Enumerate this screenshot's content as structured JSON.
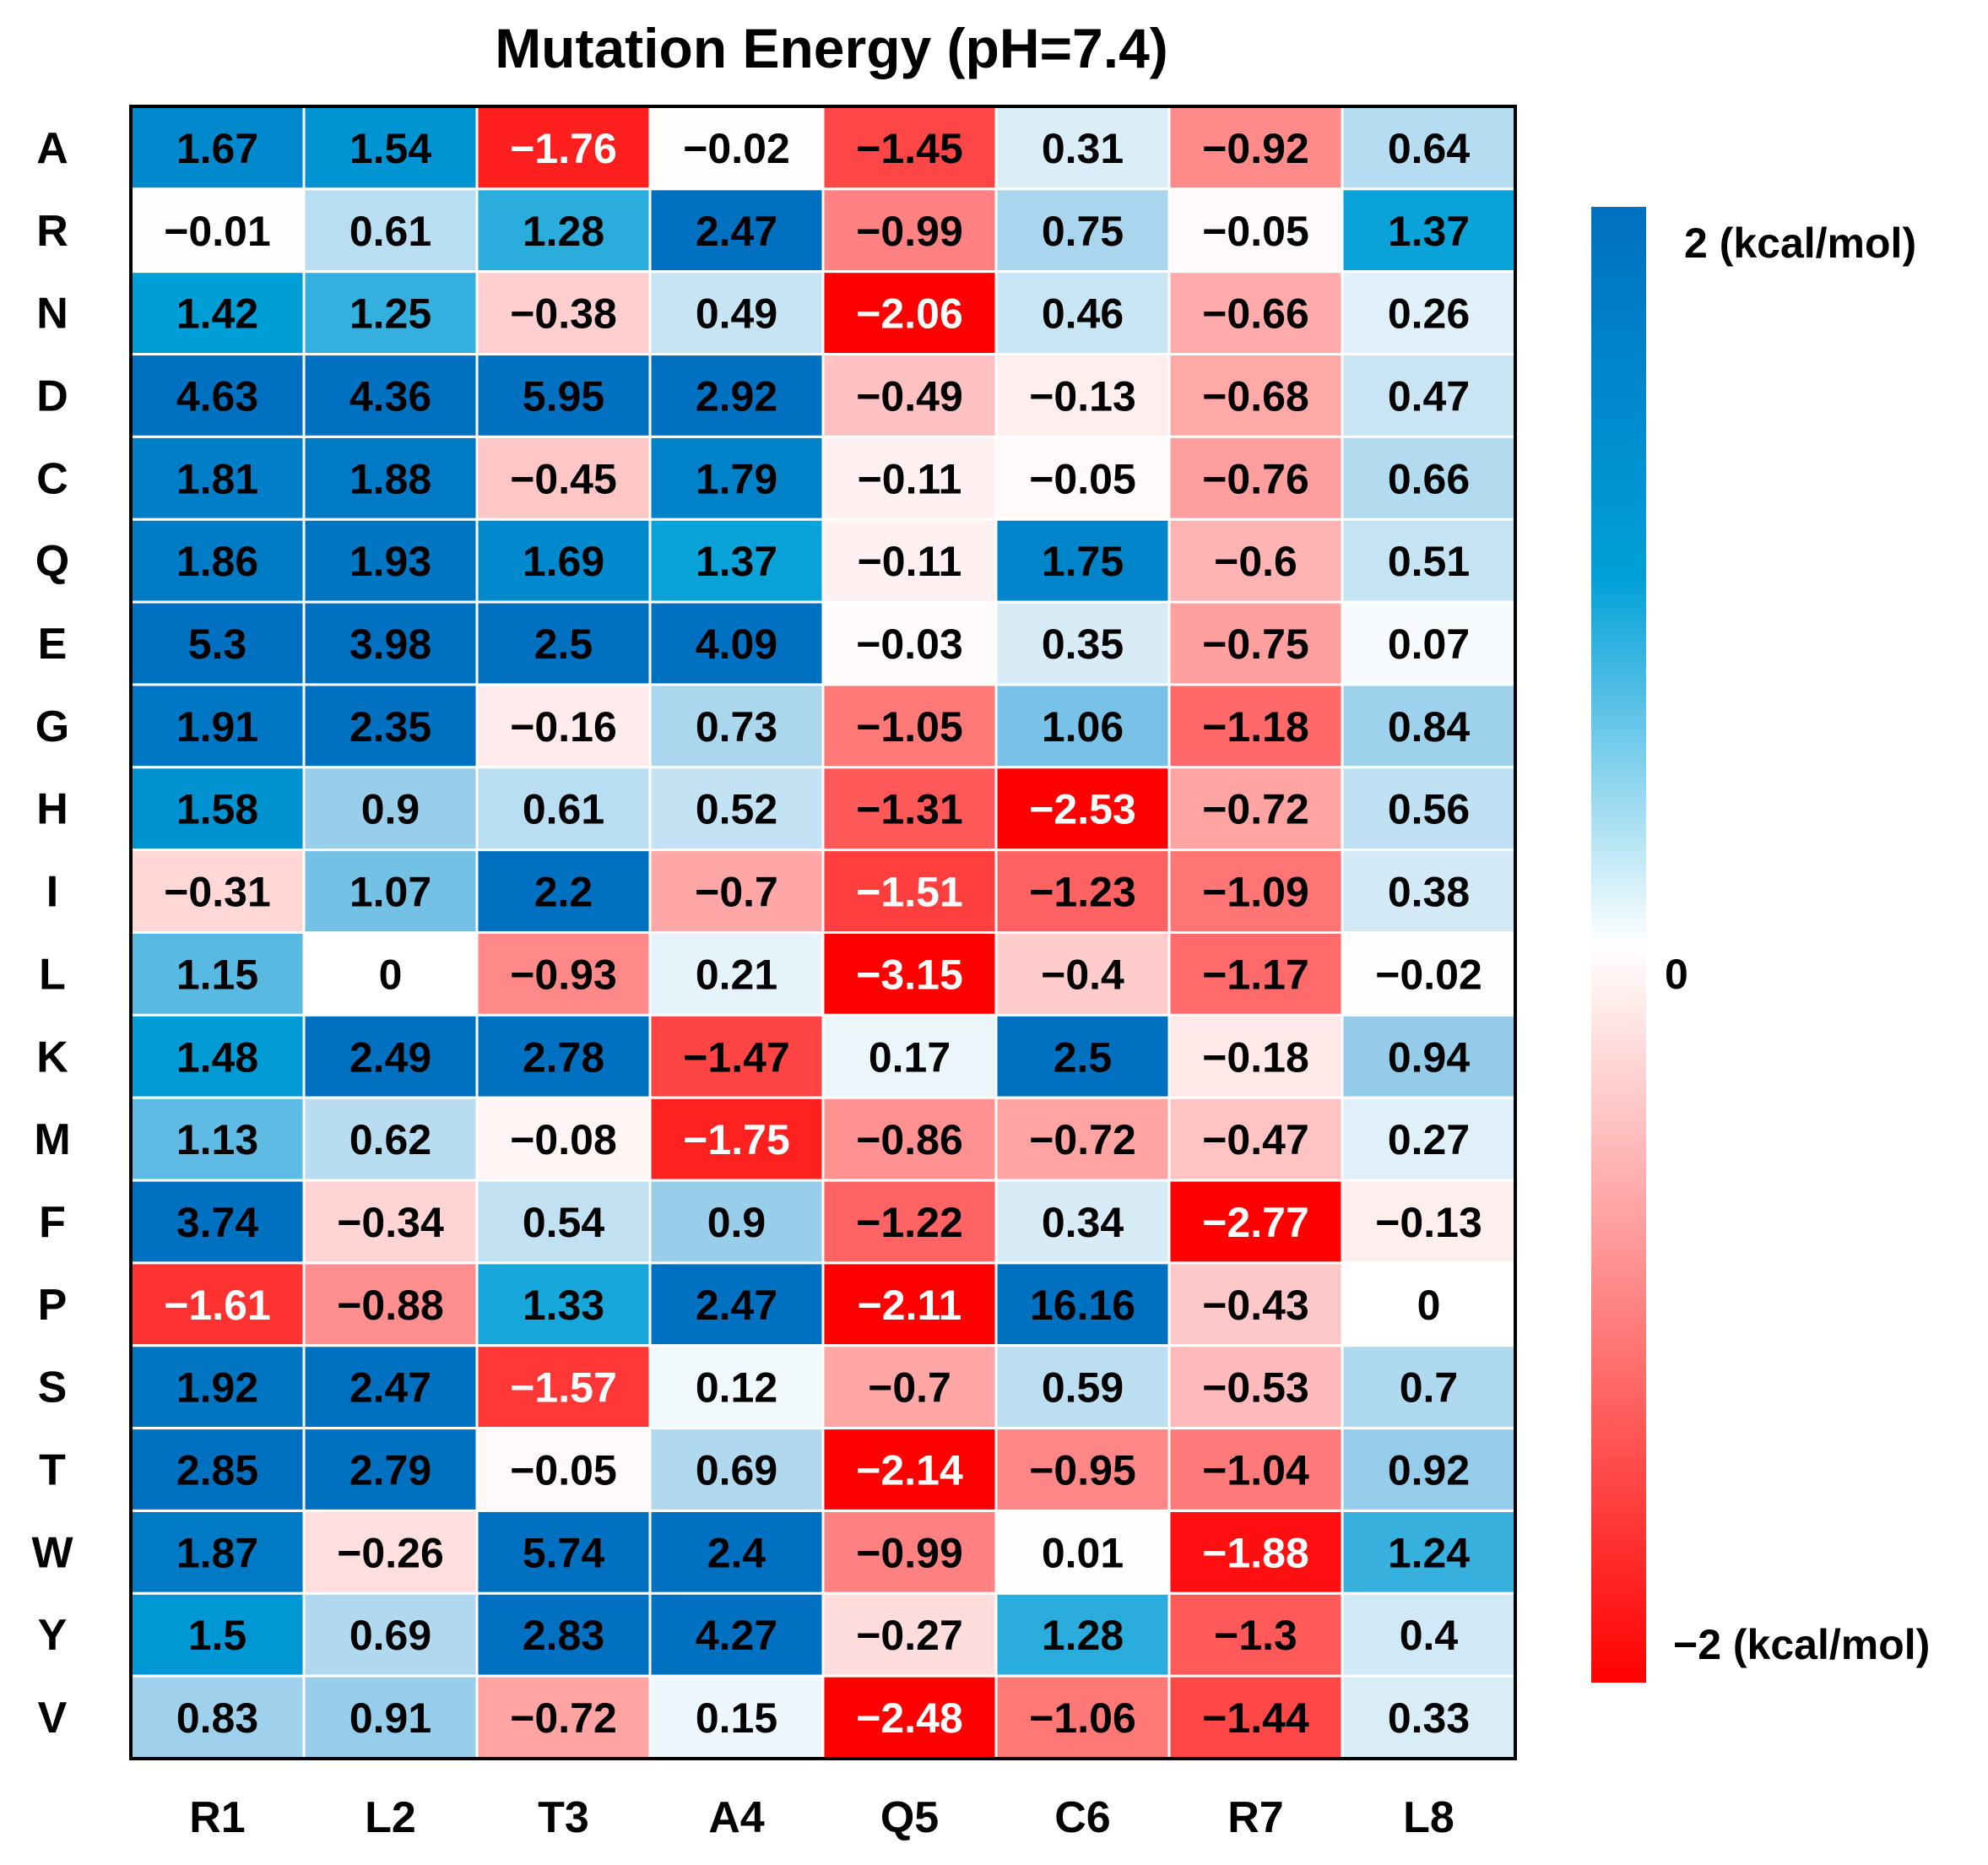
{
  "chart_data": {
    "type": "heatmap",
    "title": "Mutation Energy (pH=7.4)",
    "xlabel": "",
    "ylabel": "",
    "x_categories": [
      "R1",
      "L2",
      "T3",
      "A4",
      "Q5",
      "C6",
      "R7",
      "L8"
    ],
    "y_categories": [
      "A",
      "R",
      "N",
      "D",
      "C",
      "Q",
      "E",
      "G",
      "H",
      "I",
      "L",
      "K",
      "M",
      "F",
      "P",
      "S",
      "T",
      "W",
      "Y",
      "V"
    ],
    "values": [
      [
        1.67,
        1.54,
        "−1.76",
        "−0.02",
        "−1.45",
        0.31,
        "−0.92",
        0.64
      ],
      [
        "−0.01",
        0.61,
        1.28,
        2.47,
        "−0.99",
        0.75,
        "−0.05",
        1.37
      ],
      [
        1.42,
        1.25,
        "−0.38",
        0.49,
        "−2.06",
        0.46,
        "−0.66",
        0.26
      ],
      [
        4.63,
        4.36,
        5.95,
        2.92,
        "−0.49",
        "−0.13",
        "−0.68",
        0.47
      ],
      [
        1.81,
        1.88,
        "−0.45",
        1.79,
        "−0.11",
        "−0.05",
        "−0.76",
        0.66
      ],
      [
        1.86,
        1.93,
        1.69,
        1.37,
        "−0.11",
        1.75,
        "−0.6",
        0.51
      ],
      [
        5.3,
        3.98,
        2.5,
        4.09,
        "−0.03",
        0.35,
        "−0.75",
        0.07
      ],
      [
        1.91,
        2.35,
        "−0.16",
        0.73,
        "−1.05",
        1.06,
        "−1.18",
        0.84
      ],
      [
        1.58,
        0.9,
        0.61,
        0.52,
        "−1.31",
        "−2.53",
        "−0.72",
        0.56
      ],
      [
        "−0.31",
        1.07,
        2.2,
        "−0.7",
        "−1.51",
        "−1.23",
        "−1.09",
        0.38
      ],
      [
        1.15,
        0,
        "−0.93",
        0.21,
        "−3.15",
        "−0.4",
        "−1.17",
        "−0.02"
      ],
      [
        1.48,
        2.49,
        2.78,
        "−1.47",
        0.17,
        2.5,
        "−0.18",
        0.94
      ],
      [
        1.13,
        0.62,
        "−0.08",
        "−1.75",
        "−0.86",
        "−0.72",
        "−0.47",
        0.27
      ],
      [
        3.74,
        "−0.34",
        0.54,
        0.9,
        "−1.22",
        0.34,
        "−2.77",
        "−0.13"
      ],
      [
        "−1.61",
        "−0.88",
        1.33,
        2.47,
        "−2.11",
        16.16,
        "−0.43",
        0
      ],
      [
        1.92,
        2.47,
        "−1.57",
        0.12,
        "−0.7",
        0.59,
        "−0.53",
        0.7
      ],
      [
        2.85,
        2.79,
        "−0.05",
        0.69,
        "−2.14",
        "−0.95",
        "−1.04",
        0.92
      ],
      [
        1.87,
        "−0.26",
        5.74,
        2.4,
        "−0.99",
        0.01,
        "−1.88",
        1.24
      ],
      [
        1.5,
        0.69,
        2.83,
        4.27,
        "−0.27",
        1.28,
        "−1.3",
        0.4
      ],
      [
        0.83,
        0.91,
        "−0.72",
        0.15,
        "−2.48",
        "−1.06",
        "−1.44",
        0.33
      ]
    ],
    "color_range": [
      -2,
      2
    ],
    "colorbar": {
      "max_label": "2 (kcal/mol)",
      "mid_label": "0",
      "min_label": "−2 (kcal/mol)",
      "placement": "right"
    },
    "colors": {
      "positive": "#0070c0",
      "zero": "#ffffff",
      "negative": "#ff0000",
      "cell_border": "#ffffff",
      "frame": "#000000",
      "text": "#000000"
    }
  }
}
